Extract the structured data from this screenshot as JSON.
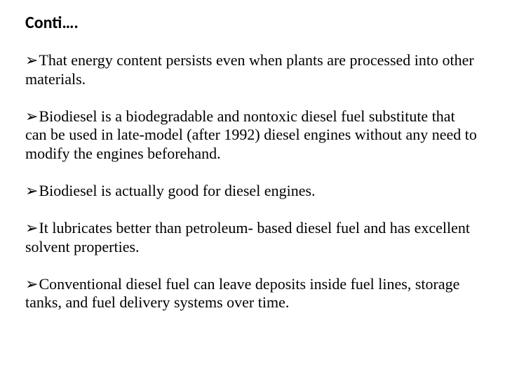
{
  "title": "Conti….",
  "bullet_marker": "➢",
  "bullets": [
    "That energy content persists even when plants are processed into other materials.",
    "Biodiesel is a biodegradable and nontoxic diesel fuel substitute that can be used in late-model (after 1992) diesel engines without any need to modify the engines beforehand.",
    "Biodiesel is actually good for diesel engines.",
    "It lubricates better than petroleum- based diesel fuel and has excellent solvent properties.",
    "Conventional diesel fuel can leave deposits inside fuel lines, storage tanks, and fuel delivery systems over time."
  ],
  "colors": {
    "background": "#ffffff",
    "text": "#000000"
  },
  "typography": {
    "title_font": "Calibri",
    "title_size_pt": 18,
    "title_weight": "bold",
    "body_font": "Times New Roman",
    "body_size_pt": 16
  }
}
